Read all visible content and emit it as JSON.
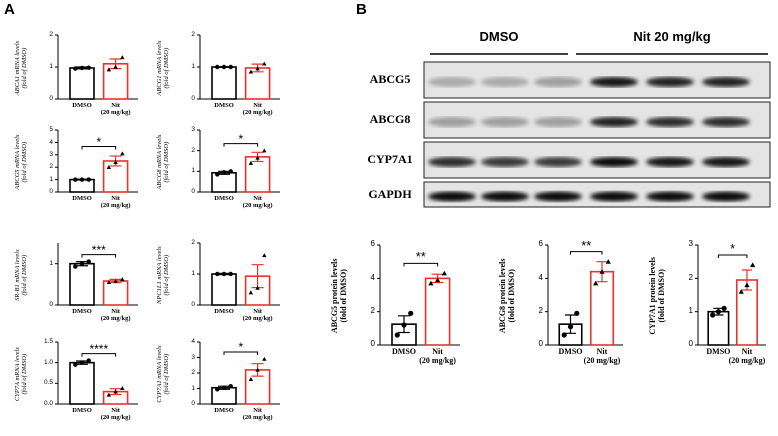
{
  "panels": [
    "A",
    "B"
  ],
  "blot": {
    "groups": [
      "DMSO",
      "Nit 20 mg/kg"
    ],
    "rows": [
      "ABCG5",
      "ABCG8",
      "CYP7A1",
      "GAPDH"
    ]
  },
  "chart_data": [
    {
      "type": "bar",
      "ylabel": "ABCA1 mRNA levels\n(fold of DMSO)",
      "categories": [
        "DMSO",
        "Nit\n(20 mg/kg)"
      ],
      "colors": [
        "#000000",
        "#e8322b"
      ],
      "values": [
        0.97,
        1.1
      ],
      "errors": [
        0.03,
        0.15
      ],
      "points": [
        [
          0.95,
          0.97,
          0.98
        ],
        [
          0.92,
          1.0,
          1.3
        ]
      ],
      "ylim": [
        0,
        2
      ],
      "yticks": [
        0,
        1,
        2
      ]
    },
    {
      "type": "bar",
      "ylabel": "ABCG1 mRNA levels\n(fold of DMSO)",
      "categories": [
        "DMSO",
        "Nit\n(20 mg/kg)"
      ],
      "colors": [
        "#000000",
        "#e8322b"
      ],
      "values": [
        1.0,
        0.97
      ],
      "errors": [
        0.01,
        0.12
      ],
      "points": [
        [
          1.0,
          1.0,
          1.0
        ],
        [
          0.85,
          0.95,
          1.1
        ]
      ],
      "ylim": [
        0,
        2
      ],
      "yticks": [
        0,
        1,
        2
      ]
    },
    {
      "type": "bar",
      "ylabel": "ABCG5 mRNA levels\n(fold of DMSO)",
      "categories": [
        "DMSO",
        "Nit\n(20 mg/kg)"
      ],
      "colors": [
        "#000000",
        "#e8322b"
      ],
      "values": [
        1.0,
        2.5
      ],
      "errors": [
        0.03,
        0.4
      ],
      "points": [
        [
          1.0,
          1.0,
          1.0
        ],
        [
          2.0,
          2.4,
          3.1
        ]
      ],
      "ylim": [
        0,
        5
      ],
      "yticks": [
        0,
        1,
        2,
        3,
        4,
        5
      ],
      "significance": "*"
    },
    {
      "type": "bar",
      "ylabel": "ABCG8 mRNA levels\n(fold of DMSO)",
      "categories": [
        "DMSO",
        "Nit\n(20 mg/kg)"
      ],
      "colors": [
        "#000000",
        "#e8322b"
      ],
      "values": [
        0.93,
        1.7
      ],
      "errors": [
        0.07,
        0.22
      ],
      "points": [
        [
          0.85,
          0.95,
          1.0
        ],
        [
          1.4,
          1.65,
          2.0
        ]
      ],
      "ylim": [
        0,
        3
      ],
      "yticks": [
        0,
        1,
        2,
        3
      ],
      "significance": "*"
    },
    {
      "type": "bar",
      "ylabel": "SR-B1 mRNA levels\n(fold of DMSO)",
      "categories": [
        "DMSO",
        "Nit\n(20 mg/kg)"
      ],
      "colors": [
        "#000000",
        "#e8322b"
      ],
      "values": [
        1.0,
        0.58
      ],
      "errors": [
        0.05,
        0.04
      ],
      "points": [
        [
          0.93,
          1.0,
          1.05
        ],
        [
          0.55,
          0.58,
          0.62
        ]
      ],
      "ylim": [
        0,
        1.5
      ],
      "yticks": [
        0,
        1
      ],
      "significance": "***"
    },
    {
      "type": "bar",
      "ylabel": "NPC1L1 mRNA levels\n(fold of DMSO)",
      "categories": [
        "DMSO",
        "Nit\n(20 mg/kg)"
      ],
      "colors": [
        "#000000",
        "#e8322b"
      ],
      "values": [
        1.0,
        0.93
      ],
      "errors": [
        0.02,
        0.37
      ],
      "points": [
        [
          1.0,
          1.0,
          1.0
        ],
        [
          0.4,
          0.55,
          1.6
        ]
      ],
      "ylim": [
        0,
        2
      ],
      "yticks": [
        0,
        1,
        2
      ]
    },
    {
      "type": "bar",
      "ylabel": "CYP7A mRNA levels\n(fold of DMSO)",
      "categories": [
        "DMSO",
        "Nit\n(20 mg/kg)"
      ],
      "colors": [
        "#000000",
        "#e8322b"
      ],
      "values": [
        1.0,
        0.3
      ],
      "errors": [
        0.04,
        0.07
      ],
      "points": [
        [
          0.95,
          1.0,
          1.05
        ],
        [
          0.22,
          0.3,
          0.38
        ]
      ],
      "ylim": [
        0,
        1.5
      ],
      "yticks": [
        {
          "value": 0,
          "label": "0.0"
        },
        {
          "value": 0.5,
          "label": "0.5"
        },
        {
          "value": 1,
          "label": "1.0"
        },
        {
          "value": 1.5,
          "label": "1.5"
        }
      ],
      "significance": "****"
    },
    {
      "type": "bar",
      "ylabel": "CYP7A1 mRNA levels\n(fold of DMSO)",
      "categories": [
        "DMSO",
        "Nit\n(20 mg/kg)"
      ],
      "colors": [
        "#000000",
        "#e8322b"
      ],
      "values": [
        1.05,
        2.2
      ],
      "errors": [
        0.1,
        0.4
      ],
      "points": [
        [
          0.95,
          1.05,
          1.15
        ],
        [
          1.6,
          2.2,
          2.9
        ]
      ],
      "ylim": [
        0,
        4
      ],
      "yticks": [
        0,
        1,
        2,
        3,
        4
      ],
      "significance": "*"
    },
    {
      "type": "bar",
      "ylabel": "ABCG5 protein levels\n(fold of DMSO)",
      "categories": [
        "DMSO",
        "Nit\n(20 mg/kg)"
      ],
      "colors": [
        "#000000",
        "#e8322b"
      ],
      "values": [
        1.25,
        4.0
      ],
      "errors": [
        0.5,
        0.25
      ],
      "points": [
        [
          0.6,
          1.2,
          1.9
        ],
        [
          3.7,
          3.9,
          4.3
        ]
      ],
      "ylim": [
        0,
        6
      ],
      "yticks": [
        0,
        2,
        4,
        6
      ],
      "significance": "**"
    },
    {
      "type": "bar",
      "ylabel": "ABCG8 protein levels\n(fold of DMSO)",
      "categories": [
        "DMSO",
        "Nit\n(20 mg/kg)"
      ],
      "colors": [
        "#000000",
        "#e8322b"
      ],
      "values": [
        1.25,
        4.4
      ],
      "errors": [
        0.55,
        0.6
      ],
      "points": [
        [
          0.6,
          1.1,
          1.9
        ],
        [
          3.7,
          4.4,
          5.0
        ]
      ],
      "ylim": [
        0,
        6
      ],
      "yticks": [
        0,
        2,
        4,
        6
      ],
      "significance": "**"
    },
    {
      "type": "bar",
      "ylabel": "CYP7A1 protein levels\n(fold of DMSO)",
      "categories": [
        "DMSO",
        "Nit\n(20 mg/kg)"
      ],
      "colors": [
        "#000000",
        "#e8322b"
      ],
      "values": [
        1.0,
        1.95
      ],
      "errors": [
        0.1,
        0.3
      ],
      "points": [
        [
          0.9,
          1.0,
          1.1
        ],
        [
          1.6,
          1.8,
          2.4
        ]
      ],
      "ylim": [
        0,
        3
      ],
      "yticks": [
        0,
        1,
        2,
        3
      ],
      "significance": "*"
    }
  ]
}
